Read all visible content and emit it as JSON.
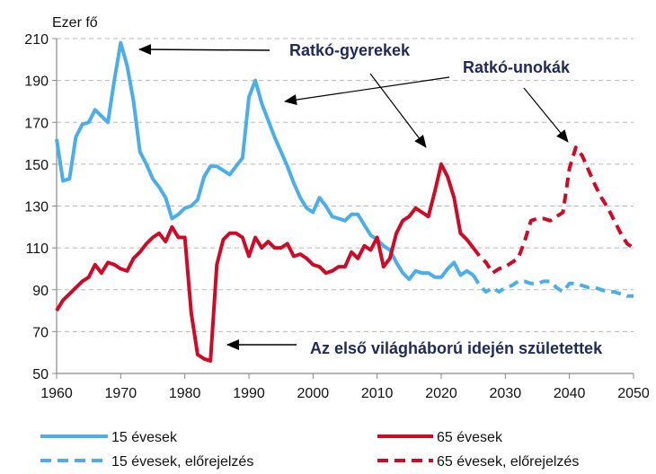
{
  "chart_data": {
    "type": "line",
    "title": "",
    "ylabel": "Ezer fő",
    "xlabel": "",
    "xlim": [
      1960,
      2050
    ],
    "ylim": [
      50,
      210
    ],
    "xticks": [
      "1960",
      "1970",
      "1980",
      "1990",
      "2000",
      "2010",
      "2020",
      "2030",
      "2040",
      "2050"
    ],
    "yticks": [
      "50",
      "70",
      "90",
      "110",
      "130",
      "150",
      "170",
      "190",
      "210"
    ],
    "grid": "horizontal dashed",
    "legend_position": "bottom",
    "colors": {
      "blue": "#4baee8",
      "red": "#cf0a26",
      "annotation": "#1f2a5a",
      "grid": "#b8b8b8"
    },
    "series": [
      {
        "name": "15 évesek",
        "style": "solid",
        "color": "#4baee8",
        "x": [
          1960,
          1961,
          1962,
          1963,
          1964,
          1965,
          1966,
          1967,
          1968,
          1969,
          1970,
          1971,
          1972,
          1973,
          1974,
          1975,
          1976,
          1977,
          1978,
          1979,
          1980,
          1981,
          1982,
          1983,
          1984,
          1985,
          1986,
          1987,
          1988,
          1989,
          1990,
          1991,
          1992,
          1993,
          1994,
          1995,
          1996,
          1997,
          1998,
          1999,
          2000,
          2001,
          2002,
          2003,
          2004,
          2005,
          2006,
          2007,
          2008,
          2009,
          2010,
          2011,
          2012,
          2013,
          2014,
          2015,
          2016,
          2017,
          2018,
          2019,
          2020,
          2021,
          2022,
          2023,
          2024,
          2025
        ],
        "y": [
          162,
          142,
          143,
          163,
          169,
          170,
          176,
          173,
          170,
          190,
          208,
          197,
          180,
          156,
          150,
          143,
          139,
          134,
          124,
          126,
          129,
          130,
          133,
          144,
          149,
          149,
          147,
          145,
          149,
          153,
          182,
          190,
          179,
          171,
          163,
          156,
          149,
          141,
          134,
          129,
          127,
          134,
          130,
          125,
          124,
          123,
          126,
          126,
          121,
          116,
          114,
          111,
          109,
          103,
          98,
          95,
          99,
          98,
          98,
          96,
          96,
          100,
          103,
          97,
          99,
          97
        ]
      },
      {
        "name": "65 évesek",
        "style": "solid",
        "color": "#cf0a26",
        "x": [
          1960,
          1961,
          1962,
          1963,
          1964,
          1965,
          1966,
          1967,
          1968,
          1969,
          1970,
          1971,
          1972,
          1973,
          1974,
          1975,
          1976,
          1977,
          1978,
          1979,
          1980,
          1981,
          1982,
          1983,
          1984,
          1985,
          1986,
          1987,
          1988,
          1989,
          1990,
          1991,
          1992,
          1993,
          1994,
          1995,
          1996,
          1997,
          1998,
          1999,
          2000,
          2001,
          2002,
          2003,
          2004,
          2005,
          2006,
          2007,
          2008,
          2009,
          2010,
          2011,
          2012,
          2013,
          2014,
          2015,
          2016,
          2017,
          2018,
          2019,
          2020,
          2021,
          2022,
          2023,
          2024,
          2025
        ],
        "y": [
          80,
          85,
          88,
          91,
          94,
          96,
          102,
          98,
          103,
          102,
          100,
          99,
          105,
          108,
          112,
          115,
          117,
          113,
          120,
          115,
          115,
          79,
          59,
          57,
          56,
          102,
          114,
          117,
          117,
          115,
          106,
          115,
          110,
          113,
          110,
          110,
          112,
          106,
          107,
          105,
          102,
          101,
          98,
          99,
          101,
          101,
          108,
          105,
          111,
          109,
          115,
          101,
          105,
          117,
          123,
          125,
          129,
          127,
          125,
          137,
          150,
          144,
          134,
          117,
          114,
          110
        ]
      },
      {
        "name": "15 évesek, előrejelzés",
        "style": "dashed",
        "color": "#4baee8",
        "x": [
          2025,
          2026,
          2027,
          2028,
          2029,
          2030,
          2031,
          2032,
          2033,
          2034,
          2035,
          2036,
          2037,
          2038,
          2039,
          2040,
          2041,
          2042,
          2043,
          2044,
          2045,
          2046,
          2047,
          2048,
          2049,
          2050
        ],
        "y": [
          97,
          92,
          89,
          91,
          89,
          91,
          92,
          94,
          94,
          93,
          93,
          94,
          94,
          91,
          89,
          93,
          93,
          92,
          91,
          91,
          90,
          89,
          89,
          88,
          87,
          87
        ]
      },
      {
        "name": "65 évesek, előrejelzés",
        "style": "dashed",
        "color": "#cf0a26",
        "x": [
          2025,
          2026,
          2027,
          2028,
          2029,
          2030,
          2031,
          2032,
          2033,
          2034,
          2035,
          2036,
          2037,
          2038,
          2039,
          2040,
          2041,
          2042,
          2043,
          2044,
          2045,
          2046,
          2047,
          2048,
          2049,
          2050
        ],
        "y": [
          110,
          106,
          103,
          98,
          100,
          101,
          103,
          105,
          113,
          123,
          124,
          124,
          123,
          125,
          127,
          148,
          158,
          154,
          147,
          140,
          134,
          129,
          123,
          117,
          112,
          110
        ]
      }
    ],
    "annotations": {
      "ratko_gyerekek": "Ratkó-gyerekek",
      "ratko_unokak": "Ratkó-unokák",
      "vilaghaboru": "Az első világháború idején születettek"
    }
  }
}
